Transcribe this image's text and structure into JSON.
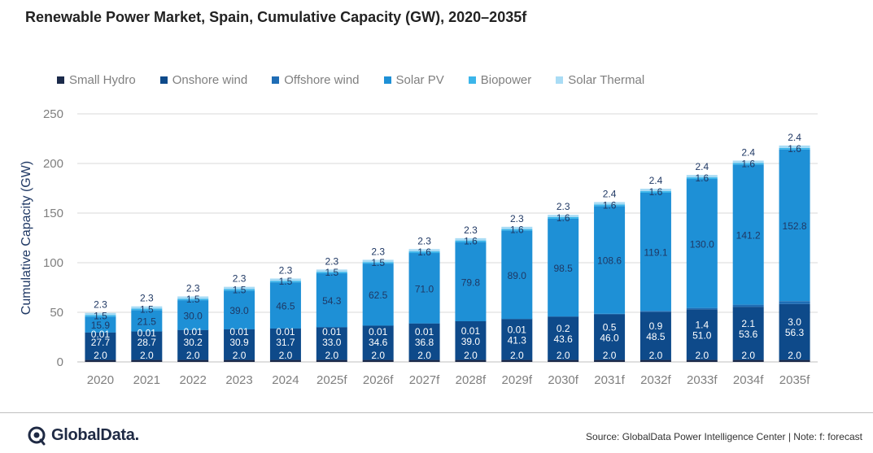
{
  "header": {
    "title": "Renewable Power Market, Spain, Cumulative Capacity (GW), 2020–2035f"
  },
  "footer": {
    "logo_text": "GlobalData.",
    "logo_icon": "globaldata-logo-icon",
    "source": "Source: GlobalData Power Intelligence Center | Note: f: forecast"
  },
  "chart_data": {
    "type": "bar",
    "stacked": true,
    "categories": [
      "2020",
      "2021",
      "2022",
      "2023",
      "2024",
      "2025f",
      "2026f",
      "2027f",
      "2028f",
      "2029f",
      "2030f",
      "2031f",
      "2032f",
      "2033f",
      "2034f",
      "2035f"
    ],
    "ylabel": "Cumulative Capacity (GW)",
    "xlabel": "",
    "ylim": [
      0,
      250
    ],
    "yticks": [
      0,
      50,
      100,
      150,
      200,
      250
    ],
    "grid": true,
    "legend_position": "top",
    "series": [
      {
        "name": "Small Hydro",
        "color": "#1b2a4a",
        "values": [
          2.0,
          2.0,
          2.0,
          2.0,
          2.0,
          2.0,
          2.0,
          2.0,
          2.0,
          2.0,
          2.0,
          2.0,
          2.0,
          2.0,
          2.0,
          2.0
        ],
        "labels": [
          "2.0",
          "2.0",
          "2.0",
          "2.0",
          "2.0",
          "2.0",
          "2.0",
          "2.0",
          "2.0",
          "2.0",
          "2.0",
          "2.0",
          "2.0",
          "2.0",
          "2.0",
          "2.0"
        ]
      },
      {
        "name": "Onshore wind",
        "color": "#0e4a8a",
        "values": [
          27.7,
          28.7,
          30.2,
          30.9,
          31.7,
          33.0,
          34.6,
          36.8,
          39.0,
          41.3,
          43.6,
          46.0,
          48.5,
          51.0,
          53.6,
          56.3
        ],
        "labels": [
          "27.7",
          "28.7",
          "30.2",
          "30.9",
          "31.7",
          "33.0",
          "34.6",
          "36.8",
          "39.0",
          "41.3",
          "43.6",
          "46.0",
          "48.5",
          "51.0",
          "53.6",
          "56.3"
        ]
      },
      {
        "name": "Offshore wind",
        "color": "#1f6db5",
        "values": [
          0.01,
          0.01,
          0.01,
          0.01,
          0.01,
          0.01,
          0.01,
          0.01,
          0.01,
          0.01,
          0.2,
          0.5,
          0.9,
          1.4,
          2.1,
          3.0
        ],
        "labels": [
          "0.01",
          "0.01",
          "0.01",
          "0.01",
          "0.01",
          "0.01",
          "0.01",
          "0.01",
          "0.01",
          "0.01",
          "0.2",
          "0.5",
          "0.9",
          "1.4",
          "2.1",
          "3.0"
        ]
      },
      {
        "name": "Solar PV",
        "color": "#1e90d6",
        "values": [
          15.9,
          21.5,
          30.0,
          39.0,
          46.5,
          54.3,
          62.5,
          71.0,
          79.8,
          89.0,
          98.5,
          108.6,
          119.1,
          130.0,
          141.2,
          152.8
        ],
        "labels": [
          "15.9",
          "21.5",
          "30.0",
          "39.0",
          "46.5",
          "54.3",
          "62.5",
          "71.0",
          "79.8",
          "89.0",
          "98.5",
          "108.6",
          "119.1",
          "130.0",
          "141.2",
          "152.8"
        ]
      },
      {
        "name": "Biopower",
        "color": "#3bb5ea",
        "values": [
          1.5,
          1.5,
          1.5,
          1.5,
          1.5,
          1.5,
          1.5,
          1.6,
          1.6,
          1.6,
          1.6,
          1.6,
          1.6,
          1.6,
          1.6,
          1.6
        ],
        "labels": [
          "1.5",
          "1.5",
          "1.5",
          "1.5",
          "1.5",
          "1.5",
          "1.5",
          "1.6",
          "1.6",
          "1.6",
          "1.6",
          "1.6",
          "1.6",
          "1.6",
          "1.6",
          "1.6"
        ]
      },
      {
        "name": "Solar Thermal",
        "color": "#a9dcf5",
        "values": [
          2.3,
          2.3,
          2.3,
          2.3,
          2.3,
          2.3,
          2.3,
          2.3,
          2.3,
          2.3,
          2.3,
          2.4,
          2.4,
          2.4,
          2.4,
          2.4
        ],
        "labels": [
          "2.3",
          "2.3",
          "2.3",
          "2.3",
          "2.3",
          "2.3",
          "2.3",
          "2.3",
          "2.3",
          "2.3",
          "2.3",
          "2.4",
          "2.4",
          "2.4",
          "2.4",
          "2.4"
        ]
      }
    ]
  }
}
